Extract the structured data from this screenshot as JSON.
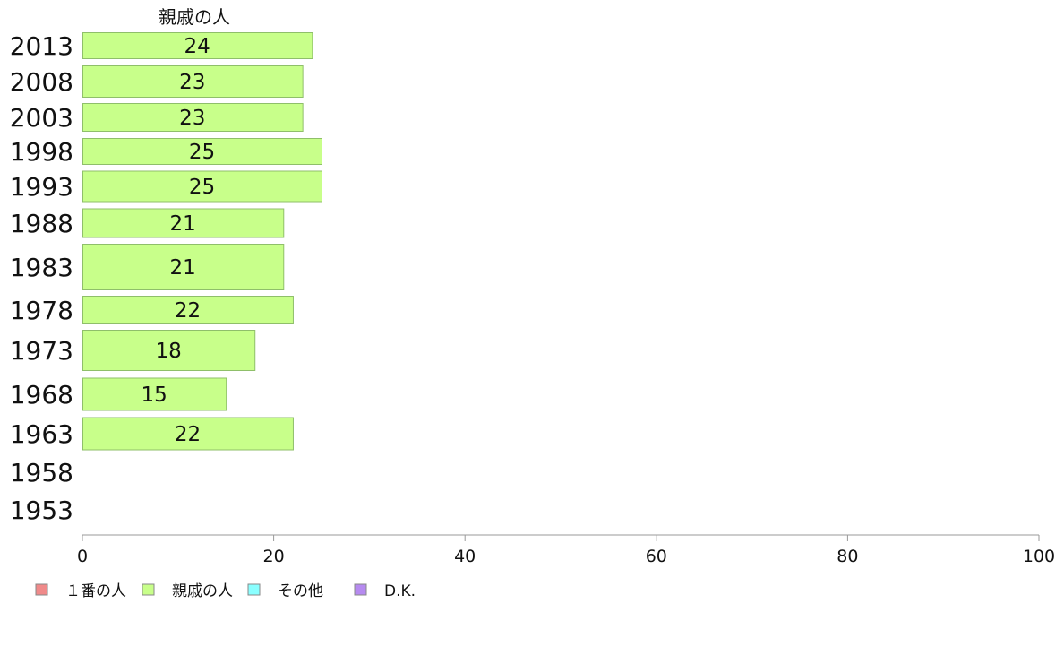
{
  "chart_data": {
    "type": "bar",
    "orientation": "horizontal",
    "title": "親戚の人",
    "categories": [
      "2013",
      "2008",
      "2003",
      "1998",
      "1993",
      "1988",
      "1983",
      "1978",
      "1973",
      "1968",
      "1963",
      "1958",
      "1953"
    ],
    "series": [
      {
        "name": "親戚の人",
        "values": [
          24,
          23,
          23,
          25,
          25,
          21,
          21,
          22,
          18,
          15,
          22,
          null,
          null
        ]
      }
    ],
    "xlim": [
      0,
      100
    ],
    "x_ticks": [
      0,
      20,
      40,
      60,
      80,
      100
    ],
    "grid": false,
    "legend": {
      "position": "bottom-left",
      "items": [
        {
          "label": "１番の人",
          "color": "#f08a8a"
        },
        {
          "label": "親戚の人",
          "color": "#c8ff8a"
        },
        {
          "label": "その他",
          "color": "#8affff"
        },
        {
          "label": "D.K.",
          "color": "#b68af0"
        }
      ]
    },
    "colors": {
      "bar_fill": "#c8ff8a",
      "bar_stroke": "#8fbf6a",
      "axis": "#999999"
    }
  }
}
